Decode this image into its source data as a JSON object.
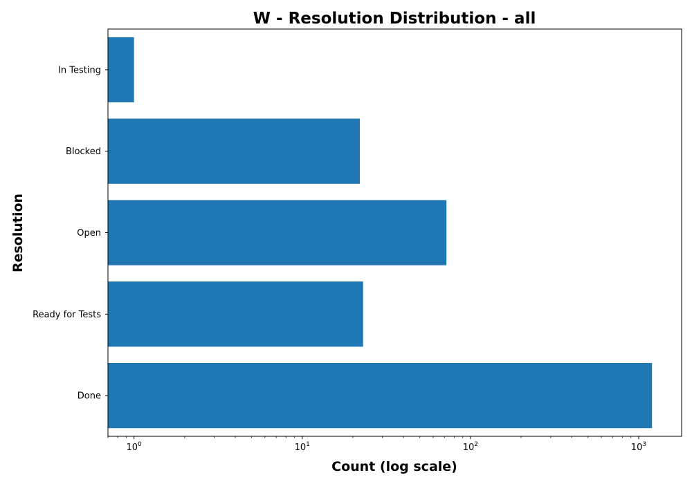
{
  "chart_data": {
    "type": "bar",
    "orientation": "horizontal",
    "title": "W - Resolution Distribution - all",
    "xlabel": "Count (log scale)",
    "ylabel": "Resolution",
    "x_scale": "log",
    "xlim": [
      0.7,
      1800
    ],
    "x_ticks": [
      {
        "value": 1,
        "base": "10",
        "exp": "0"
      },
      {
        "value": 10,
        "base": "10",
        "exp": "1"
      },
      {
        "value": 100,
        "base": "10",
        "exp": "2"
      },
      {
        "value": 1000,
        "base": "10",
        "exp": "3"
      }
    ],
    "categories": [
      "In Testing",
      "Blocked",
      "Open",
      "Ready for Tests",
      "Done"
    ],
    "values": [
      1,
      22,
      72,
      23,
      1200
    ],
    "bar_color": "#1f77b4",
    "grid": false,
    "legend": false
  }
}
